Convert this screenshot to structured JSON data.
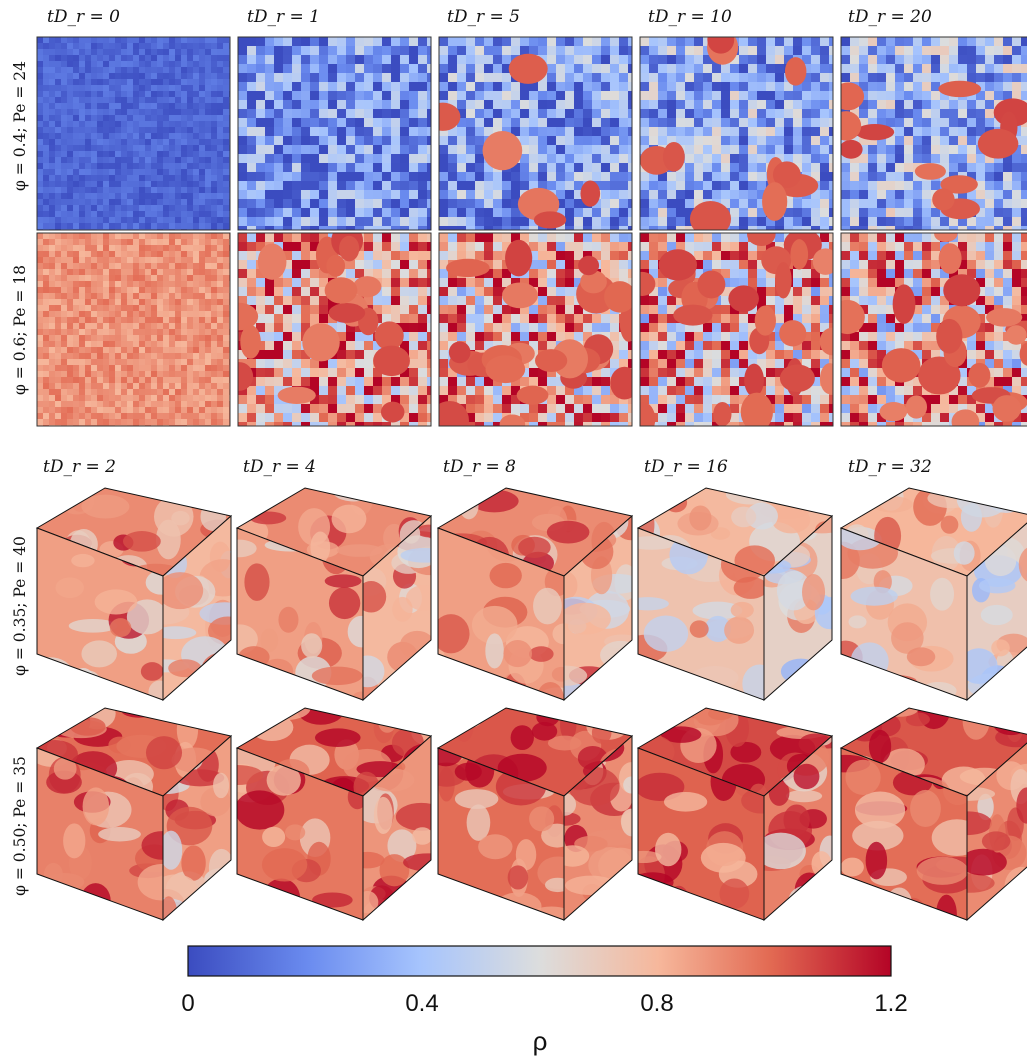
{
  "top_rows": [
    {
      "label": "φ = 0.4; Pe = 24",
      "base": [
        0.07,
        0.18,
        0.22,
        0.26,
        0.3
      ]
    },
    {
      "label": "φ = 0.6; Pe = 18",
      "base": [
        0.67,
        0.62,
        0.58,
        0.57,
        0.6
      ]
    }
  ],
  "top_times": [
    "tD_r = 0",
    "tD_r = 1",
    "tD_r = 5",
    "tD_r = 10",
    "tD_r = 20"
  ],
  "bottom_times": [
    "tD_r = 2",
    "tD_r = 4",
    "tD_r = 8",
    "tD_r = 16",
    "tD_r = 32"
  ],
  "bottom_rows": [
    {
      "label": "φ = 0.35; Pe = 40"
    },
    {
      "label": "φ = 0.50; Pe = 35"
    }
  ],
  "colorbar": {
    "label": "ρ",
    "ticks": [
      "0",
      "0.4",
      "0.8",
      "1.2"
    ],
    "min": 0,
    "max": 1.2,
    "colormap": "coolwarm",
    "colors": [
      "#3b4cc0",
      "#7396f5",
      "#b0cbfc",
      "#dcdddd",
      "#f6bfa6",
      "#ea7b60",
      "#b40426"
    ]
  }
}
